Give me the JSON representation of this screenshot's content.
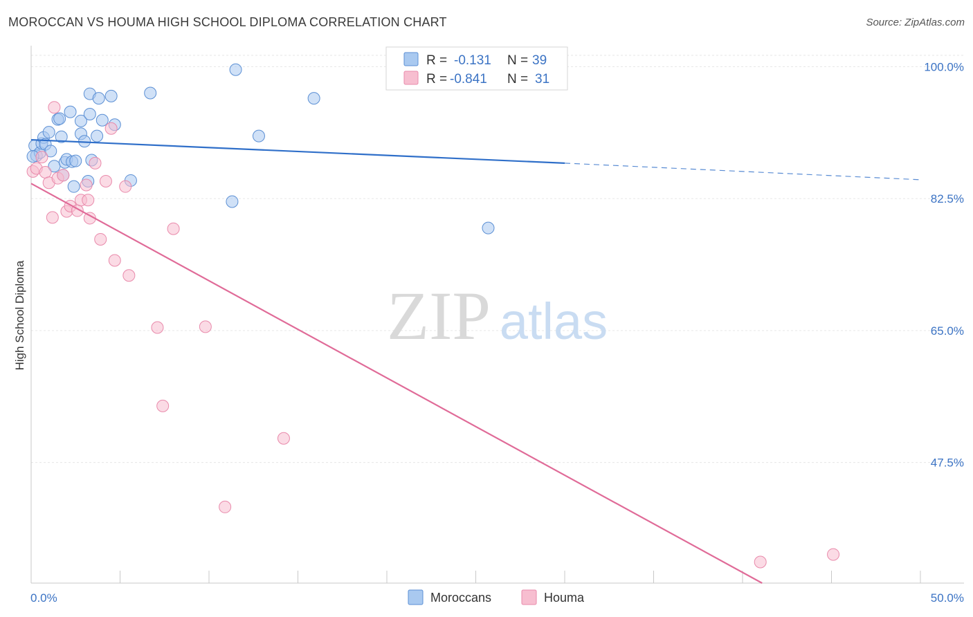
{
  "header": {
    "title": "MOROCCAN VS HOUMA HIGH SCHOOL DIPLOMA CORRELATION CHART",
    "source": "Source: ZipAtlas.com"
  },
  "watermark": {
    "zip": "ZIP",
    "atlas": "atlas"
  },
  "stats": [
    {
      "r_label": "R =",
      "r_value": "-0.131",
      "n_label": "N =",
      "n_value": "39",
      "color": "#a9c9f0",
      "stroke": "#5b8fd4"
    },
    {
      "r_label": "R =",
      "r_value": "-0.841",
      "n_label": "N =",
      "n_value": "31",
      "color": "#f7bed0",
      "stroke": "#e98aab"
    }
  ],
  "legend": [
    {
      "label": "Moroccans",
      "color": "#a9c9f0",
      "stroke": "#5b8fd4"
    },
    {
      "label": "Houma",
      "color": "#f7bed0",
      "stroke": "#e98aab"
    }
  ],
  "chart_data": {
    "type": "scatter",
    "title": "MOROCCAN VS HOUMA HIGH SCHOOL DIPLOMA CORRELATION CHART",
    "xlabel": "",
    "ylabel": "High School Diploma",
    "xlim": [
      0,
      50
    ],
    "ylim": [
      31.5,
      101.5
    ],
    "x_tick_labels": [
      "0.0%",
      "50.0%"
    ],
    "y_ticks": [
      100.0,
      82.5,
      65.0,
      47.5
    ],
    "y_tick_labels": [
      "100.0%",
      "82.5%",
      "65.0%",
      "47.5%"
    ],
    "grid": true,
    "legend_position": "bottom-center",
    "series": [
      {
        "name": "Moroccans",
        "color": "#a9c9f0",
        "stroke": "#5b8fd4",
        "line_color": "#2f6fc9",
        "trend": {
          "x0": 0,
          "y0": 90.3,
          "x1": 30,
          "y1": 87.2,
          "x_dash_end": 50,
          "y_dash_end": 85.0
        },
        "points": [
          [
            0.2,
            89.5
          ],
          [
            0.3,
            88.2
          ],
          [
            0.5,
            88.6
          ],
          [
            0.6,
            89.8
          ],
          [
            0.7,
            90.6
          ],
          [
            0.8,
            89.7
          ],
          [
            1.0,
            91.3
          ],
          [
            1.1,
            88.8
          ],
          [
            1.3,
            86.8
          ],
          [
            1.5,
            93.0
          ],
          [
            1.6,
            93.1
          ],
          [
            1.7,
            90.7
          ],
          [
            1.8,
            85.6
          ],
          [
            1.9,
            87.3
          ],
          [
            2.0,
            87.7
          ],
          [
            2.2,
            94.0
          ],
          [
            2.3,
            87.4
          ],
          [
            2.5,
            87.5
          ],
          [
            2.4,
            84.1
          ],
          [
            2.8,
            91.1
          ],
          [
            2.8,
            92.8
          ],
          [
            3.0,
            90.1
          ],
          [
            3.2,
            84.8
          ],
          [
            3.3,
            93.7
          ],
          [
            3.3,
            96.4
          ],
          [
            3.4,
            87.6
          ],
          [
            3.7,
            90.8
          ],
          [
            3.8,
            95.8
          ],
          [
            4.0,
            92.9
          ],
          [
            4.5,
            96.1
          ],
          [
            4.7,
            92.3
          ],
          [
            5.6,
            84.9
          ],
          [
            6.7,
            96.5
          ],
          [
            11.3,
            82.1
          ],
          [
            11.5,
            99.6
          ],
          [
            12.8,
            90.8
          ],
          [
            15.9,
            95.8
          ],
          [
            25.7,
            78.6
          ],
          [
            0.1,
            88.1
          ]
        ]
      },
      {
        "name": "Houma",
        "color": "#f7bed0",
        "stroke": "#e98aab",
        "line_color": "#e06b98",
        "trend": {
          "x0": 0,
          "y0": 84.5,
          "x1": 41.1,
          "y1": 31.5
        },
        "points": [
          [
            0.1,
            86.1
          ],
          [
            0.3,
            86.5
          ],
          [
            0.6,
            88.0
          ],
          [
            0.8,
            86.0
          ],
          [
            1.0,
            84.6
          ],
          [
            1.2,
            80.0
          ],
          [
            1.3,
            94.6
          ],
          [
            1.5,
            85.2
          ],
          [
            1.8,
            85.6
          ],
          [
            2.0,
            80.8
          ],
          [
            2.2,
            81.5
          ],
          [
            2.6,
            80.9
          ],
          [
            2.8,
            82.3
          ],
          [
            3.1,
            84.3
          ],
          [
            3.2,
            82.3
          ],
          [
            3.3,
            79.9
          ],
          [
            3.6,
            87.2
          ],
          [
            3.9,
            77.1
          ],
          [
            4.2,
            84.8
          ],
          [
            4.5,
            91.8
          ],
          [
            4.7,
            74.3
          ],
          [
            5.3,
            84.1
          ],
          [
            5.5,
            72.3
          ],
          [
            7.1,
            65.4
          ],
          [
            7.4,
            55.0
          ],
          [
            8.0,
            78.5
          ],
          [
            9.8,
            65.5
          ],
          [
            10.9,
            41.6
          ],
          [
            14.2,
            50.7
          ],
          [
            41.0,
            34.3
          ],
          [
            45.1,
            35.3
          ]
        ]
      }
    ]
  }
}
